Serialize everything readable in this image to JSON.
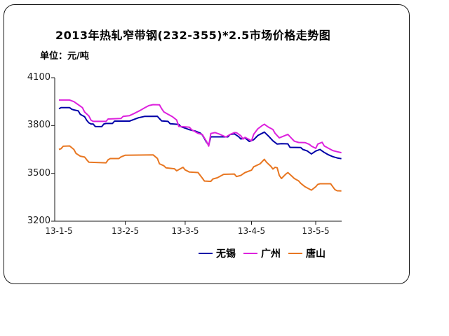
{
  "chart_data": {
    "type": "line",
    "title": "2013年热轧窄带钢(232-355)*2.5市场价格走势图",
    "unit_label": "单位：元/吨",
    "ylabel": "元/吨",
    "ylim": [
      3200,
      4100
    ],
    "y_tick_labels": [
      "4100",
      "3800",
      "3500",
      "3200"
    ],
    "y_tick_values": [
      4100,
      3800,
      3500,
      3200
    ],
    "xlim": [
      0,
      132
    ],
    "x_tick_labels": [
      "13-1-5",
      "13-2-5",
      "13-3-5",
      "13-4-5",
      "13-5-5"
    ],
    "x_tick_days": [
      0,
      31,
      59,
      90,
      120
    ],
    "grid": false,
    "legend_position": "bottom",
    "x_unit": "days since 2013-01-05",
    "series": [
      {
        "id": "wuxi",
        "name": "无锡",
        "color": "#0000a8",
        "x": [
          0,
          1,
          5,
          6,
          7,
          9,
          10,
          12,
          13,
          14,
          15,
          16,
          17,
          20,
          21,
          22,
          25,
          26,
          33,
          35,
          37,
          40,
          46,
          47,
          48,
          51,
          52,
          56,
          57,
          59,
          61,
          64,
          66,
          67,
          69,
          70,
          71,
          79,
          80,
          82,
          84,
          85,
          87,
          88,
          89,
          91,
          93,
          95,
          96,
          98,
          100,
          102,
          104,
          107,
          108,
          113,
          114,
          116,
          118,
          120,
          122,
          124,
          126,
          128,
          130,
          132
        ],
        "values": [
          3905,
          3912,
          3912,
          3902,
          3898,
          3892,
          3870,
          3855,
          3832,
          3817,
          3810,
          3810,
          3794,
          3793,
          3810,
          3813,
          3813,
          3828,
          3828,
          3838,
          3848,
          3857,
          3858,
          3843,
          3829,
          3826,
          3811,
          3807,
          3793,
          3784,
          3774,
          3764,
          3753,
          3741,
          3695,
          3678,
          3729,
          3729,
          3744,
          3748,
          3730,
          3716,
          3722,
          3711,
          3700,
          3711,
          3738,
          3752,
          3759,
          3733,
          3704,
          3684,
          3686,
          3685,
          3663,
          3662,
          3650,
          3641,
          3622,
          3640,
          3650,
          3631,
          3616,
          3605,
          3597,
          3592
        ]
      },
      {
        "id": "guangzhou",
        "name": "广州",
        "color": "#dd22dd",
        "x": [
          0,
          5,
          7,
          9,
          11,
          12,
          14,
          15,
          16,
          22,
          23,
          29,
          30,
          33,
          35,
          38,
          40,
          42,
          44,
          47,
          48,
          49,
          51,
          53,
          55,
          56,
          61,
          62,
          64,
          65,
          67,
          69,
          70,
          71,
          73,
          75,
          77,
          78,
          80,
          82,
          83,
          85,
          86,
          87,
          89,
          90,
          91,
          93,
          95,
          96,
          98,
          100,
          101,
          103,
          105,
          107,
          109,
          110,
          112,
          115,
          117,
          118,
          120,
          121,
          123,
          124,
          126,
          128,
          130,
          132
        ],
        "values": [
          3960,
          3960,
          3950,
          3931,
          3912,
          3885,
          3860,
          3833,
          3826,
          3826,
          3841,
          3844,
          3857,
          3862,
          3875,
          3895,
          3911,
          3925,
          3931,
          3930,
          3906,
          3886,
          3871,
          3856,
          3835,
          3795,
          3789,
          3774,
          3759,
          3751,
          3744,
          3700,
          3671,
          3750,
          3756,
          3746,
          3734,
          3728,
          3744,
          3756,
          3755,
          3736,
          3715,
          3726,
          3712,
          3704,
          3745,
          3780,
          3800,
          3808,
          3789,
          3775,
          3752,
          3723,
          3734,
          3745,
          3716,
          3702,
          3694,
          3693,
          3682,
          3671,
          3657,
          3684,
          3695,
          3672,
          3657,
          3643,
          3636,
          3630
        ]
      },
      {
        "id": "tangshan",
        "name": "唐山",
        "color": "#e87722",
        "x": [
          0,
          1,
          2,
          5,
          7,
          8,
          10,
          12,
          13,
          14,
          22,
          23,
          24,
          28,
          29,
          31,
          44,
          46,
          47,
          49,
          50,
          54,
          55,
          57,
          58,
          59,
          61,
          65,
          67,
          68,
          71,
          72,
          74,
          77,
          82,
          83,
          85,
          87,
          90,
          91,
          94,
          96,
          97,
          99,
          100,
          101,
          102,
          103,
          104,
          106,
          107,
          109,
          110,
          112,
          113,
          115,
          117,
          118,
          120,
          121,
          122,
          127,
          128,
          129,
          130,
          132
        ],
        "values": [
          3650,
          3655,
          3670,
          3672,
          3650,
          3625,
          3608,
          3602,
          3585,
          3570,
          3566,
          3585,
          3593,
          3593,
          3603,
          3614,
          3616,
          3594,
          3560,
          3548,
          3535,
          3529,
          3516,
          3531,
          3538,
          3522,
          3508,
          3505,
          3470,
          3452,
          3450,
          3465,
          3472,
          3494,
          3496,
          3480,
          3487,
          3505,
          3520,
          3541,
          3560,
          3588,
          3570,
          3545,
          3527,
          3538,
          3535,
          3487,
          3468,
          3495,
          3505,
          3481,
          3468,
          3453,
          3438,
          3416,
          3402,
          3395,
          3416,
          3431,
          3435,
          3435,
          3416,
          3398,
          3391,
          3390
        ]
      }
    ]
  }
}
